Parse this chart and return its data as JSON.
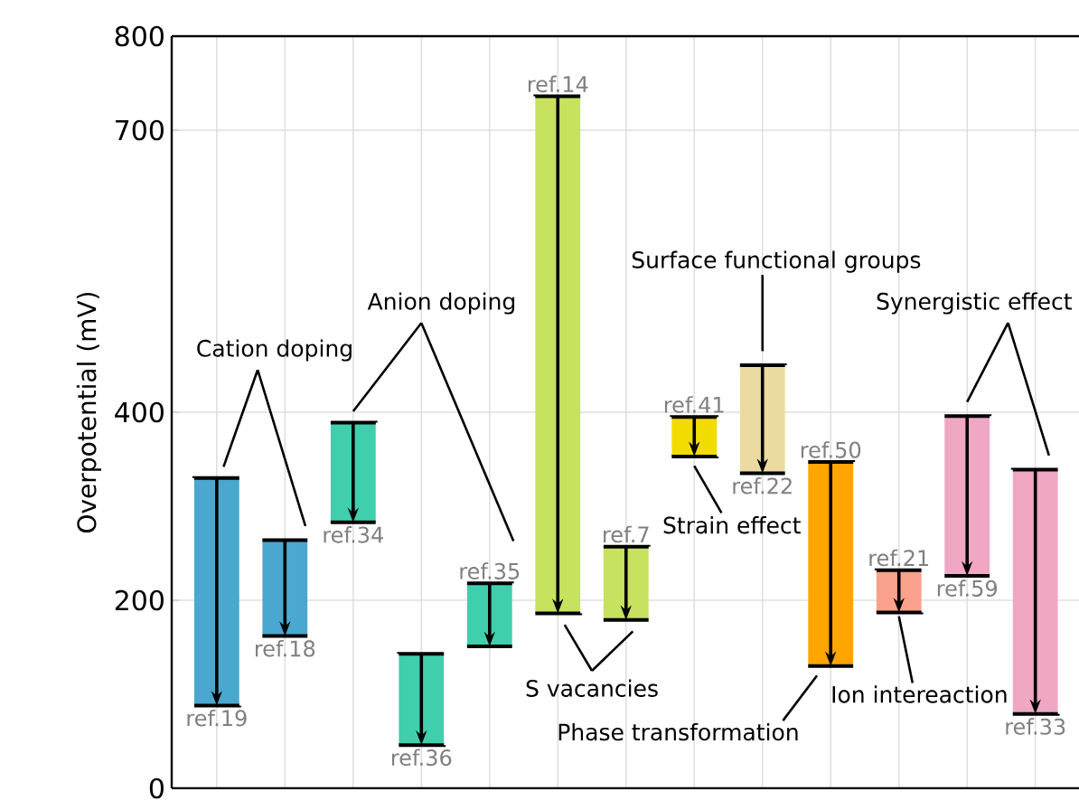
{
  "chart_data": {
    "type": "bar",
    "ylabel": "Overpotential (mV)",
    "categories": [
      "ref.19",
      "ref.18",
      "ref.34",
      "ref.36",
      "ref.35",
      "ref.14",
      "ref.7",
      "ref.41",
      "ref.22",
      "ref.50",
      "ref.21",
      "ref.59",
      "ref.33"
    ],
    "base": [
      88,
      162,
      283,
      46,
      151,
      186,
      179,
      353,
      335,
      130,
      187,
      226,
      79
    ],
    "values": [
      242,
      102,
      106,
      97,
      67,
      550,
      78,
      42,
      115,
      217,
      45,
      170,
      260
    ],
    "colors": [
      "#4aa8d0",
      "#4aa8d0",
      "#40cfad",
      "#40cfad",
      "#40cfad",
      "#c6e25e",
      "#c6e25e",
      "#f2dc00",
      "#ebdba0",
      "#ffa500",
      "#f9a18c",
      "#efa7c4",
      "#efa7c4"
    ],
    "ylim": [
      0,
      800
    ],
    "yticks": [
      0,
      200,
      400,
      700,
      800
    ],
    "grid": true,
    "tick_labels": "y",
    "annotations": [
      {
        "text": "Cation doping",
        "x": "ref.19",
        "y": 330
      },
      {
        "text": "Anion doping",
        "x": "ref.34",
        "y": 389
      },
      {
        "text": "S vacancies",
        "x": "ref.14",
        "y": 186
      },
      {
        "text": "Strain effect",
        "x": "ref.41",
        "y": 353
      },
      {
        "text": "Surface functional groups",
        "x": "ref.22",
        "y": 450
      },
      {
        "text": "Phase transformation",
        "x": "ref.50",
        "y": 130
      },
      {
        "text": "Ion intereaction",
        "x": "ref.21",
        "y": 187
      },
      {
        "text": "Synergistic effect",
        "x": "ref.59",
        "y": 396
      }
    ]
  }
}
